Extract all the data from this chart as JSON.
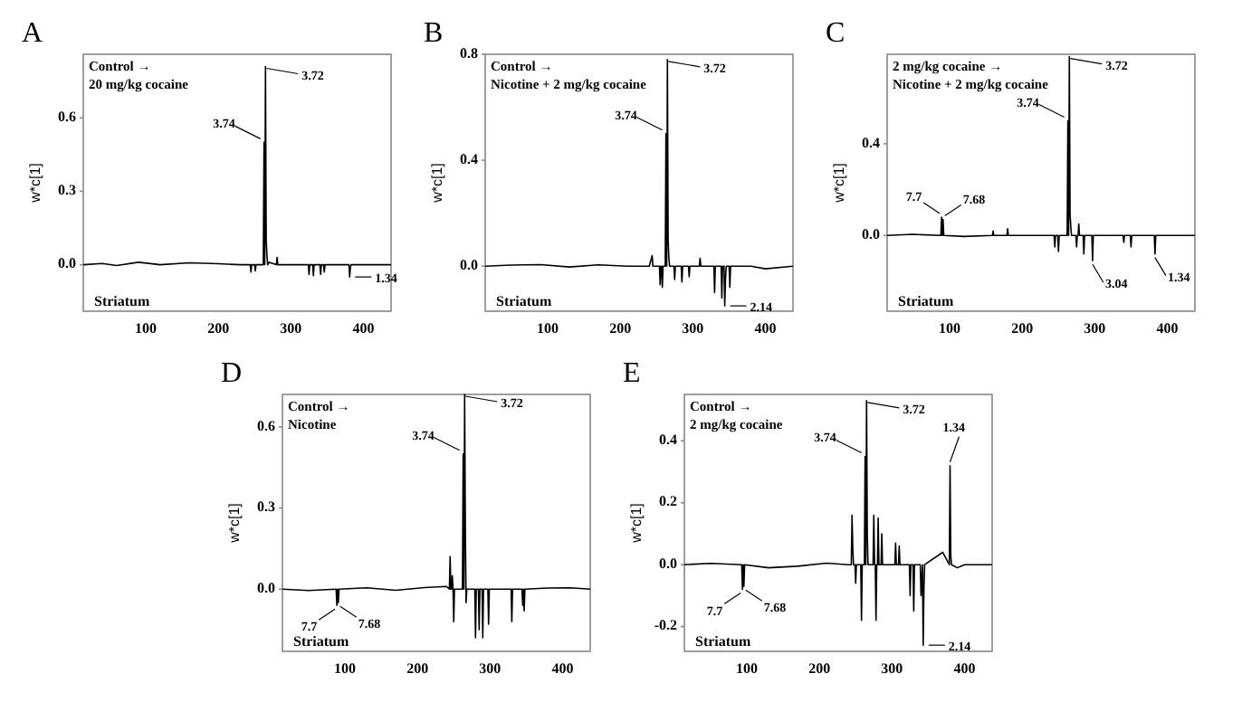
{
  "chart_data": [
    {
      "type": "line",
      "title": "A",
      "subtitle": "Control →\n20 mg/kg cocaine",
      "ylabel": "w*c[1]",
      "xlim": [
        14,
        438
      ],
      "xticks": [
        100,
        200,
        300,
        400
      ],
      "ylim": [
        -0.19,
        0.86
      ],
      "yticks": [
        {
          "value": 0,
          "label": "0.0"
        },
        {
          "value": 0.3,
          "label": "0.3"
        },
        {
          "value": 0.6,
          "label": "0.6"
        }
      ],
      "series": [
        {
          "color": "#000000",
          "x": [
            14,
            40,
            60,
            90,
            120,
            160,
            200,
            230,
            244,
            245,
            246,
            250,
            251,
            252,
            262,
            263,
            264,
            265,
            266,
            267,
            268,
            270,
            280,
            281,
            282,
            300,
            324,
            325,
            326,
            330,
            331,
            332,
            340,
            341,
            342,
            345,
            346,
            347,
            380,
            381,
            382,
            383,
            400,
            438
          ],
          "values": [
            0,
            0.005,
            -0.003,
            0.01,
            0,
            0.008,
            0.004,
            0,
            0,
            -0.03,
            0,
            0,
            -0.025,
            0,
            0,
            0.5,
            0,
            0.81,
            0.1,
            0.04,
            0,
            0.01,
            0,
            0.03,
            0,
            0,
            0,
            -0.04,
            0,
            0,
            -0.045,
            0,
            0,
            -0.04,
            0,
            0,
            -0.03,
            0,
            0,
            -0.05,
            -0.01,
            0,
            0,
            0
          ]
        }
      ],
      "annotations": [
        {
          "text": "3.74",
          "x": 263,
          "y": 0.5
        },
        {
          "text": "3.72",
          "x": 265,
          "y": 0.81
        },
        {
          "text": "1.34",
          "x": 381,
          "y": -0.05
        },
        "Striatum"
      ]
    },
    {
      "type": "line",
      "title": "B",
      "subtitle": "Control →\nNicotine + 2 mg/kg cocaine",
      "ylabel": "w*c[1]",
      "xlim": [
        14,
        438
      ],
      "xticks": [
        100,
        200,
        300,
        400
      ],
      "ylim": [
        -0.17,
        0.8
      ],
      "yticks": [
        {
          "value": 0,
          "label": "0.0"
        },
        {
          "value": 0.4,
          "label": "0.4"
        },
        {
          "value": 0.8,
          "label": "0.8"
        }
      ],
      "series": [
        {
          "color": "#000000",
          "x": [
            14,
            50,
            90,
            130,
            170,
            210,
            240,
            244,
            245,
            254,
            255,
            256,
            257,
            258,
            259,
            262,
            263,
            264,
            265,
            266,
            267,
            268,
            274,
            275,
            276,
            284,
            285,
            286,
            294,
            295,
            296,
            309,
            310,
            311,
            329,
            330,
            331,
            339,
            340,
            341,
            343,
            344,
            345,
            346,
            350,
            351,
            352,
            380,
            400,
            438
          ],
          "values": [
            0,
            0.004,
            0.006,
            -0.003,
            0.005,
            0,
            0,
            0.04,
            0,
            0,
            -0.07,
            0,
            0,
            -0.08,
            0,
            0,
            0.5,
            0,
            0.78,
            0.1,
            0.03,
            0,
            0,
            -0.05,
            0,
            0,
            -0.06,
            0,
            0,
            -0.04,
            0,
            0,
            0.03,
            0,
            0,
            -0.1,
            0,
            0,
            -0.12,
            0,
            0,
            -0.15,
            -0.05,
            0,
            0,
            -0.08,
            0,
            0,
            -0.01,
            0
          ]
        }
      ],
      "annotations": [
        {
          "text": "3.74",
          "x": 263,
          "y": 0.5
        },
        {
          "text": "3.72",
          "x": 265,
          "y": 0.78
        },
        {
          "text": "2.14",
          "x": 344,
          "y": -0.15
        },
        "Striatum"
      ]
    },
    {
      "type": "line",
      "title": "C",
      "subtitle": "2 mg/kg cocaine →\nNicotine + 2 mg/kg cocaine",
      "ylabel": "w*c[1]",
      "xlim": [
        14,
        438
      ],
      "xticks": [
        100,
        200,
        300,
        400
      ],
      "ylim": [
        -0.33,
        0.79
      ],
      "yticks": [
        {
          "value": 0,
          "label": "0.0"
        },
        {
          "value": 0.4,
          "label": "0.4"
        }
      ],
      "series": [
        {
          "color": "#000000",
          "x": [
            14,
            50,
            88,
            89,
            90,
            91,
            92,
            120,
            159,
            160,
            161,
            179,
            180,
            181,
            220,
            244,
            245,
            246,
            249,
            250,
            251,
            262,
            263,
            264,
            265,
            266,
            267,
            268,
            274,
            275,
            276,
            277,
            278,
            279,
            284,
            285,
            286,
            296,
            297,
            298,
            339,
            340,
            341,
            349,
            350,
            351,
            382,
            383,
            384,
            400,
            438
          ],
          "values": [
            0,
            0.005,
            0,
            0.08,
            0,
            0.07,
            0,
            -0.004,
            0,
            0.02,
            0,
            0,
            0.03,
            0,
            0,
            0,
            -0.05,
            0,
            0,
            -0.07,
            0,
            0,
            0.5,
            0,
            0.78,
            0.09,
            0.04,
            0,
            0,
            -0.05,
            0,
            0,
            0.05,
            0,
            0,
            -0.08,
            0,
            0,
            -0.11,
            0,
            0,
            -0.03,
            0,
            0,
            -0.05,
            0,
            0,
            -0.08,
            0,
            0,
            0
          ]
        }
      ],
      "annotations": [
        {
          "text": "7.7",
          "x": 89,
          "y": 0.08
        },
        {
          "text": "7.68",
          "x": 91,
          "y": 0.07
        },
        {
          "text": "3.74",
          "x": 263,
          "y": 0.5
        },
        {
          "text": "3.72",
          "x": 265,
          "y": 0.78
        },
        {
          "text": "3.04",
          "x": 297,
          "y": -0.11
        },
        {
          "text": "1.34",
          "x": 383,
          "y": -0.08
        },
        "Striatum"
      ]
    },
    {
      "type": "line",
      "title": "D",
      "subtitle": "Control →\nNicotine",
      "ylabel": "w*c[1]",
      "xlim": [
        14,
        438
      ],
      "xticks": [
        100,
        200,
        300,
        400
      ],
      "ylim": [
        -0.23,
        0.72
      ],
      "yticks": [
        {
          "value": 0,
          "label": "0.0"
        },
        {
          "value": 0.3,
          "label": "0.3"
        },
        {
          "value": 0.6,
          "label": "0.6"
        }
      ],
      "series": [
        {
          "color": "#000000",
          "x": [
            14,
            50,
            88,
            89,
            90,
            91,
            92,
            130,
            170,
            210,
            240,
            244,
            245,
            246,
            247,
            248,
            249,
            250,
            251,
            262,
            263,
            264,
            265,
            266,
            267,
            268,
            279,
            280,
            281,
            284,
            285,
            286,
            289,
            290,
            291,
            297,
            298,
            299,
            329,
            330,
            331,
            344,
            345,
            346,
            347,
            348,
            380,
            410,
            438
          ],
          "values": [
            0,
            -0.005,
            0,
            -0.06,
            0,
            -0.05,
            0,
            0.005,
            -0.004,
            0.006,
            0.01,
            0,
            0.12,
            0,
            0,
            0.05,
            0,
            -0.12,
            0,
            0,
            0.5,
            0,
            0.72,
            0.22,
            -0.05,
            0,
            0,
            -0.18,
            0,
            0,
            -0.15,
            0,
            0,
            -0.18,
            0,
            0,
            -0.13,
            0,
            0,
            -0.12,
            0,
            0,
            -0.06,
            0,
            -0.08,
            0,
            0.004,
            0.005,
            0
          ]
        }
      ],
      "annotations": [
        {
          "text": "7.7",
          "x": 89,
          "y": -0.06
        },
        {
          "text": "7.68",
          "x": 91,
          "y": -0.05
        },
        {
          "text": "3.74",
          "x": 263,
          "y": 0.5
        },
        {
          "text": "3.72",
          "x": 265,
          "y": 0.72
        },
        "Striatum"
      ]
    },
    {
      "type": "line",
      "title": "E",
      "subtitle": "Control →\n2 mg/kg cocaine",
      "ylabel": "w*c[1]",
      "xlim": [
        14,
        438
      ],
      "xticks": [
        100,
        200,
        300,
        400
      ],
      "ylim": [
        -0.28,
        0.55
      ],
      "yticks": [
        {
          "value": -0.2,
          "label": "-0.2"
        },
        {
          "value": 0,
          "label": "0.0"
        },
        {
          "value": 0.2,
          "label": "0.2"
        },
        {
          "value": 0.4,
          "label": "0.4"
        }
      ],
      "series": [
        {
          "color": "#000000",
          "x": [
            14,
            50,
            93,
            94,
            95,
            96,
            97,
            130,
            170,
            210,
            240,
            244,
            245,
            246,
            247,
            249,
            250,
            251,
            257,
            258,
            259,
            262,
            263,
            264,
            265,
            266,
            267,
            274,
            275,
            276,
            277,
            278,
            279,
            280,
            281,
            282,
            285,
            286,
            287,
            304,
            305,
            306,
            309,
            310,
            311,
            324,
            325,
            326,
            329,
            330,
            331,
            339,
            340,
            342,
            343,
            344,
            345,
            370,
            379,
            380,
            381,
            382,
            390,
            400,
            438
          ],
          "values": [
            0,
            0.004,
            0,
            -0.08,
            0,
            -0.07,
            0,
            -0.01,
            -0.005,
            0.005,
            0,
            0,
            0.16,
            0.05,
            0,
            0,
            -0.06,
            0,
            0,
            -0.18,
            0,
            0,
            0.35,
            0,
            0.53,
            0.1,
            0,
            0,
            0.16,
            0,
            0,
            -0.18,
            0,
            0,
            0.15,
            0,
            0,
            0.1,
            0,
            0,
            0.07,
            0,
            0,
            0.06,
            0,
            0,
            -0.1,
            0,
            0,
            -0.15,
            0,
            0,
            -0.1,
            0,
            -0.26,
            -0.08,
            0,
            0.04,
            0,
            0.32,
            0.03,
            0,
            -0.01,
            0,
            0
          ]
        }
      ],
      "annotations": [
        {
          "text": "7.7",
          "x": 94,
          "y": -0.08
        },
        {
          "text": "7.68",
          "x": 96,
          "y": -0.07
        },
        {
          "text": "3.74",
          "x": 263,
          "y": 0.35
        },
        {
          "text": "3.72",
          "x": 265,
          "y": 0.53
        },
        {
          "text": "1.34",
          "x": 380,
          "y": 0.32
        },
        {
          "text": "2.14",
          "x": 343,
          "y": -0.26
        },
        "Striatum"
      ]
    }
  ]
}
